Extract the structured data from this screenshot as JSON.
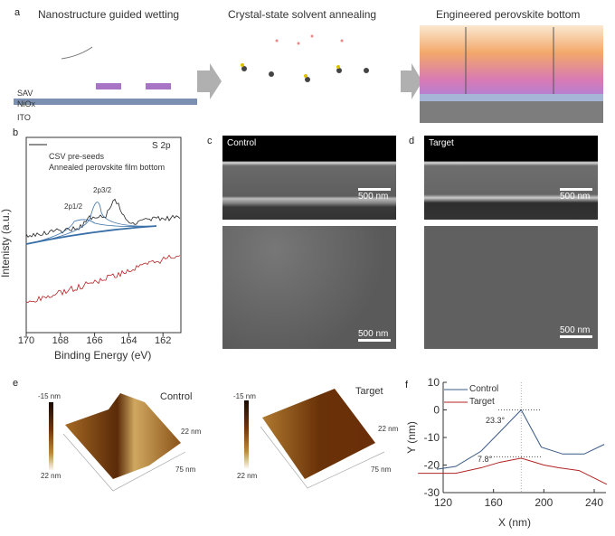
{
  "panel_labels": {
    "a": "a",
    "b": "b",
    "c": "c",
    "d": "d",
    "e": "e",
    "f": "f"
  },
  "panel_a": {
    "titles": [
      "Nanostructure guided wetting",
      "Crystal-state solvent annealing",
      "Engineered perovskite bottom"
    ],
    "layers": {
      "sav": "SAV",
      "nio": "NiOx",
      "ito": "ITO"
    },
    "colors": {
      "nio": "#7b8fb0",
      "sav": "#a875c6",
      "arrow": "#b0b0b0"
    }
  },
  "panel_b": {
    "type": "line",
    "title": "S 2p",
    "xlabel": "Binding Energy (eV)",
    "ylabel": "Intenisty (a.u.)",
    "legend": [
      "CSV pre-seeds",
      "Annealed perovskite film bottom"
    ],
    "peaks": [
      "2p3/2",
      "2p1/2"
    ],
    "xlim": [
      170,
      161
    ],
    "xticks": [
      170,
      168,
      166,
      164,
      162
    ],
    "series_colors": {
      "csv": "#222222",
      "annealed": "#b22222",
      "fit": "#3a6fa8"
    }
  },
  "panel_c": {
    "label": "Control",
    "scale_top": "500 nm",
    "scale_bottom": "500 nm"
  },
  "panel_d": {
    "label": "Target",
    "scale_top": "500 nm",
    "scale_bottom": "500 nm"
  },
  "panel_e": {
    "control": {
      "label": "Control",
      "cbar_top": "-15 nm",
      "cbar_bottom": "22 nm",
      "z": "22 nm",
      "xy": "75 nm"
    },
    "target": {
      "label": "Target",
      "cbar_top": "-15 nm",
      "cbar_bottom": "22 nm",
      "z": "22 nm",
      "xy": "75 nm"
    }
  },
  "chart_data": {
    "type": "line",
    "xlabel": "X (nm)",
    "ylabel": "Y (nm)",
    "xlim": [
      120,
      250
    ],
    "ylim": [
      -30,
      10
    ],
    "xticks": [
      120,
      160,
      200,
      240
    ],
    "yticks": [
      10,
      0,
      -10,
      -20,
      -30
    ],
    "annotations": [
      "23.3°",
      "7.8°"
    ],
    "legend": "top-left",
    "series": [
      {
        "name": "Control",
        "color": "#3a5a85",
        "x": [
          115,
          130,
          150,
          165,
          182,
          198,
          215,
          232,
          248
        ],
        "y": [
          -21.5,
          -20.5,
          -15,
          -8,
          0,
          -13.5,
          -16,
          -16,
          -12.5
        ]
      },
      {
        "name": "Target",
        "color": "#b22222",
        "x": [
          100,
          130,
          150,
          165,
          182,
          200,
          212,
          228,
          250
        ],
        "y": [
          -23,
          -23,
          -21,
          -19,
          -17.5,
          -20,
          -21,
          -22,
          -27
        ]
      }
    ]
  }
}
